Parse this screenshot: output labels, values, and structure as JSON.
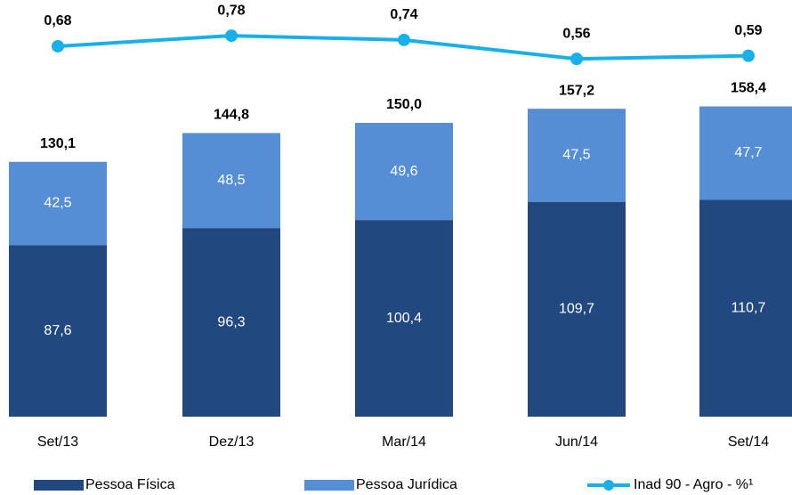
{
  "chart_data": {
    "type": "stacked_bar_line",
    "categories": [
      "Set/13",
      "Dez/13",
      "Mar/14",
      "Jun/14",
      "Set/14"
    ],
    "series": [
      {
        "name": "Pessoa Física",
        "color": "#22497f",
        "values": [
          87.6,
          96.3,
          100.4,
          109.7,
          110.7
        ],
        "value_labels": [
          "87,6",
          "96,3",
          "100,4",
          "109,7",
          "110,7"
        ]
      },
      {
        "name": "Pessoa Jurídica",
        "color": "#558ed5",
        "values": [
          42.5,
          48.5,
          49.6,
          47.5,
          47.7
        ],
        "value_labels": [
          "42,5",
          "48,5",
          "49,6",
          "47,5",
          "47,7"
        ]
      },
      {
        "name": "Inad 90 - Agro - %¹",
        "color": "#17b0e8",
        "axis": "y2",
        "values": [
          0.68,
          0.78,
          0.74,
          0.56,
          0.59
        ],
        "value_labels": [
          "0,68",
          "0,78",
          "0,74",
          "0,56",
          "0,59"
        ]
      }
    ],
    "totals": [
      130.1,
      144.8,
      150.0,
      157.2,
      158.4
    ],
    "total_labels": [
      "130,1",
      "144,8",
      "150,0",
      "157,2",
      "158,4"
    ],
    "ylim": [
      0,
      180
    ],
    "y2lim": [
      0.3,
      1.0
    ]
  }
}
